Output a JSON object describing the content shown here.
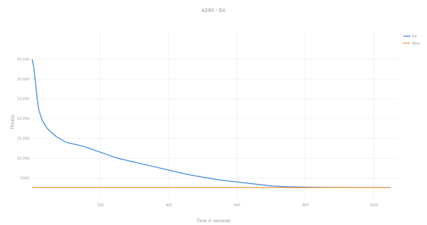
{
  "chart_data": {
    "type": "line",
    "title": "A280 - EA",
    "xlabel": "Time in seconds",
    "ylabel": "Fitness",
    "xlim": [
      0,
      1070
    ],
    "ylim": [
      0,
      42000
    ],
    "grid": true,
    "legend_position": "top-right",
    "x_ticks": [
      200,
      400,
      600,
      800,
      1000
    ],
    "y_ticks": [
      5000,
      10000,
      15000,
      20000,
      25000,
      30000,
      35000
    ],
    "x_tick_labels": [
      "200",
      "400",
      "600",
      "800",
      "1000"
    ],
    "y_tick_labels": [
      "5000",
      "10,000",
      "15,000",
      "20,000",
      "25,000",
      "30,000",
      "35,000"
    ],
    "series": [
      {
        "name": "EA",
        "color": "#4a90e2",
        "x": [
          0,
          5,
          10,
          15,
          20,
          30,
          40,
          50,
          70,
          100,
          150,
          200,
          250,
          300,
          350,
          400,
          450,
          500,
          550,
          600,
          650,
          700,
          750,
          800,
          850,
          900,
          950,
          1000,
          1050
        ],
        "y": [
          35000,
          33000,
          29000,
          25000,
          22000,
          19500,
          18000,
          17000,
          15500,
          14000,
          13000,
          11500,
          10000,
          9000,
          8000,
          7000,
          6000,
          5200,
          4500,
          4000,
          3500,
          3000,
          2800,
          2700,
          2650,
          2620,
          2600,
          2600,
          2600
        ]
      },
      {
        "name": "Best",
        "color": "#f5a04a",
        "x": [
          0,
          1050
        ],
        "y": [
          2580,
          2580
        ]
      }
    ]
  }
}
